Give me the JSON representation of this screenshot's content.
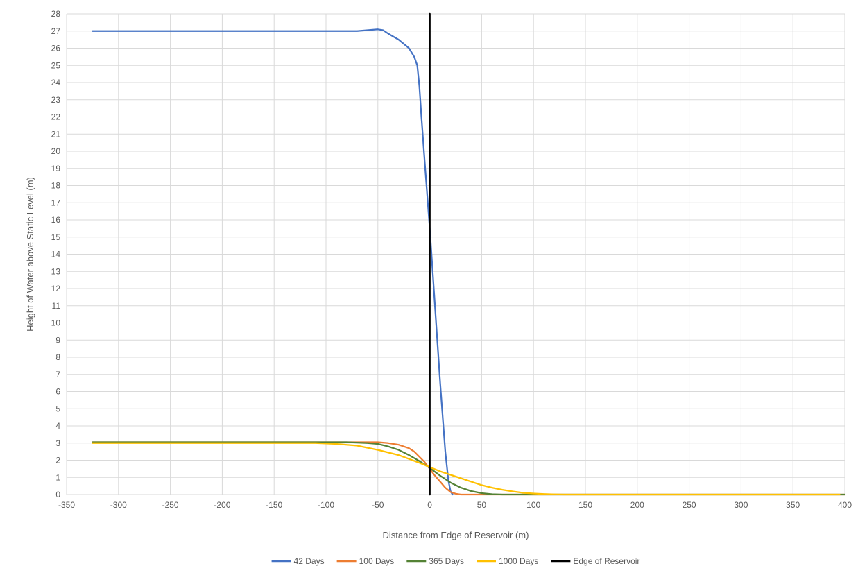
{
  "chart_data": {
    "type": "line",
    "title": "",
    "xlabel": "Distance from Edge of Reservoir (m)",
    "ylabel": "Height of Water above Static Level (m)",
    "xlim": [
      -350,
      400
    ],
    "ylim": [
      0,
      28
    ],
    "x_ticks": [
      -350,
      -300,
      -250,
      -200,
      -150,
      -100,
      -50,
      0,
      50,
      100,
      150,
      200,
      250,
      300,
      350,
      400
    ],
    "y_ticks": [
      0,
      1,
      2,
      3,
      4,
      5,
      6,
      7,
      8,
      9,
      10,
      11,
      12,
      13,
      14,
      15,
      16,
      17,
      18,
      19,
      20,
      21,
      22,
      23,
      24,
      25,
      26,
      27,
      28
    ],
    "grid": true,
    "legend_position": "bottom",
    "series": [
      {
        "name": "42 Days",
        "color": "#4472c4",
        "x": [
          -325,
          -70,
          -60,
          -50,
          -45,
          -40,
          -30,
          -20,
          -15,
          -12,
          -10,
          -8,
          -5,
          0,
          5,
          10,
          15,
          18,
          20,
          22
        ],
        "y": [
          27,
          27,
          27.05,
          27.1,
          27.05,
          26.85,
          26.5,
          26,
          25.5,
          25,
          23.8,
          22,
          19.5,
          15.5,
          11,
          6.5,
          2.5,
          0.8,
          0.2,
          0
        ]
      },
      {
        "name": "100 Days",
        "color": "#ed7d31",
        "x": [
          -325,
          -100,
          -60,
          -50,
          -40,
          -30,
          -20,
          -15,
          -10,
          -5,
          0,
          5,
          10,
          15,
          20,
          25,
          30,
          400
        ],
        "y": [
          3.05,
          3.05,
          3.05,
          3.05,
          3.0,
          2.9,
          2.7,
          2.5,
          2.2,
          1.9,
          1.5,
          1.1,
          0.75,
          0.4,
          0.15,
          0.05,
          0,
          0
        ]
      },
      {
        "name": "365 Days",
        "color": "#548235",
        "x": [
          -325,
          -100,
          -80,
          -60,
          -50,
          -40,
          -30,
          -20,
          -10,
          0,
          10,
          20,
          30,
          40,
          50,
          60,
          70,
          400
        ],
        "y": [
          3.05,
          3.05,
          3.05,
          3.0,
          2.95,
          2.8,
          2.6,
          2.3,
          1.95,
          1.55,
          1.1,
          0.7,
          0.4,
          0.2,
          0.08,
          0.02,
          0,
          0
        ]
      },
      {
        "name": "1000 Days",
        "color": "#ffc000",
        "x": [
          -325,
          -110,
          -90,
          -70,
          -50,
          -30,
          -10,
          0,
          10,
          20,
          30,
          40,
          50,
          60,
          70,
          80,
          90,
          100,
          110,
          120,
          130,
          395
        ],
        "y": [
          3.0,
          3.0,
          2.95,
          2.85,
          2.6,
          2.3,
          1.85,
          1.6,
          1.35,
          1.15,
          0.95,
          0.75,
          0.55,
          0.4,
          0.28,
          0.18,
          0.1,
          0.06,
          0.03,
          0.01,
          0,
          0
        ]
      },
      {
        "name": "Edge of Reservoir",
        "color": "#000000",
        "x": [
          0,
          0
        ],
        "y": [
          0,
          28
        ]
      }
    ]
  }
}
